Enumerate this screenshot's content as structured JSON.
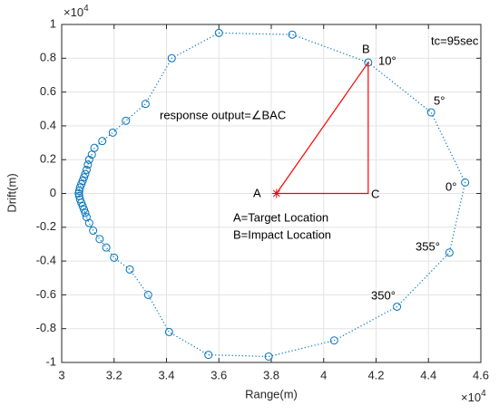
{
  "chart_data": {
    "type": "scatter",
    "x_label": "Range(m)",
    "y_label": "Drift(m)",
    "x_multiplier": "×10",
    "x_exponent": "4",
    "y_multiplier": "×10",
    "y_exponent": "4",
    "xlim": [
      3,
      4.6
    ],
    "ylim": [
      -1,
      1
    ],
    "xticks": [
      3,
      3.2,
      3.4,
      3.6,
      3.8,
      4,
      4.2,
      4.4,
      4.6
    ],
    "yticks": [
      -1,
      -0.8,
      -0.6,
      -0.4,
      -0.2,
      0,
      0.2,
      0.4,
      0.6,
      0.8,
      1
    ],
    "grid": true,
    "series": [
      {
        "color": "#0072BD",
        "x": [
          3.6,
          3.88,
          4.17,
          4.41,
          4.54,
          4.48,
          4.28,
          4.04,
          3.79,
          3.56,
          3.41,
          3.33,
          3.26,
          3.2,
          3.17,
          3.145,
          3.12,
          3.105,
          3.095,
          3.09,
          3.085,
          3.08,
          3.075,
          3.07,
          3.067,
          3.065,
          3.067,
          3.07,
          3.075,
          3.08,
          3.085,
          3.09,
          3.095,
          3.1,
          3.105,
          3.115,
          3.125,
          3.155,
          3.195,
          3.245,
          3.32,
          3.42
        ],
        "y": [
          0.95,
          0.94,
          0.775,
          0.48,
          0.065,
          -0.35,
          -0.67,
          -0.87,
          -0.965,
          -0.955,
          -0.82,
          -0.6,
          -0.45,
          -0.38,
          -0.32,
          -0.27,
          -0.22,
          -0.175,
          -0.14,
          -0.115,
          -0.095,
          -0.075,
          -0.055,
          -0.035,
          -0.015,
          0,
          0.015,
          0.035,
          0.055,
          0.075,
          0.095,
          0.115,
          0.14,
          0.17,
          0.2,
          0.23,
          0.27,
          0.31,
          0.36,
          0.43,
          0.53,
          0.8
        ]
      }
    ],
    "triangle": {
      "color": "#FF0000",
      "x": [
        3.82,
        4.17,
        4.17
      ],
      "y": [
        0,
        0.775,
        0
      ]
    },
    "annotations": {
      "tc": "tc=95sec",
      "b": "B",
      "deg10": "10°",
      "deg5": "5°",
      "deg0": "0°",
      "deg355": "355°",
      "deg350": "350°",
      "response": "response output=∠BAC",
      "a": "A",
      "c": "C",
      "legend_a": "A=Target Location",
      "legend_b": "B=Impact Location"
    }
  }
}
